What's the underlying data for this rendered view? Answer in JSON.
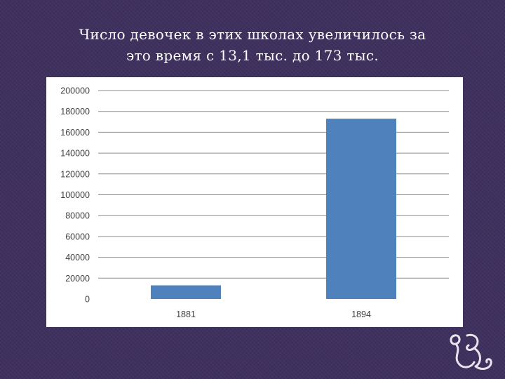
{
  "slide": {
    "title_line1": "Число девочек в этих школах увеличилось за",
    "title_line2": "это время с 13,1 тыс. до 173 тыс."
  },
  "colors": {
    "background": "#3d2f5c",
    "bar": "#4f81bd",
    "gridline": "#8c8c8c",
    "ornament": "#e8e4ee"
  },
  "icons": {
    "ornament": "decorative-flourish-icon"
  },
  "chart_data": {
    "type": "bar",
    "categories": [
      "1881",
      "1894"
    ],
    "series": [
      {
        "values": [
          13100,
          173000
        ]
      }
    ],
    "title": "",
    "xlabel": "",
    "ylabel": "",
    "ylim": [
      0,
      200000
    ],
    "yticks": [
      0,
      20000,
      40000,
      60000,
      80000,
      100000,
      120000,
      140000,
      160000,
      180000,
      200000
    ],
    "grid": true,
    "legend": "none"
  }
}
